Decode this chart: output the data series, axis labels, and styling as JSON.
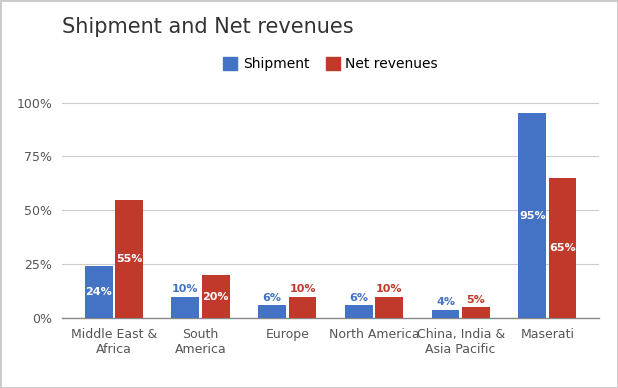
{
  "title": "Shipment and Net revenues",
  "categories": [
    "Middle East &\nAfrica",
    "South\nAmerica",
    "Europe",
    "North America",
    "China, India &\nAsia Pacific",
    "Maserati"
  ],
  "shipment": [
    24,
    10,
    6,
    6,
    4,
    95
  ],
  "net_revenues": [
    55,
    20,
    10,
    10,
    5,
    65
  ],
  "shipment_color": "#4472C4",
  "net_revenues_color": "#C0392B",
  "background_color": "#FFFFFF",
  "grid_color": "#CCCCCC",
  "title_fontsize": 15,
  "tick_fontsize": 9,
  "legend_fontsize": 10,
  "bar_label_fontsize": 8,
  "ylim": [
    0,
    108
  ],
  "yticks": [
    0,
    25,
    50,
    75,
    100
  ],
  "ytick_labels": [
    "0%",
    "25%",
    "50%",
    "75%",
    "100%"
  ],
  "legend_labels": [
    "Shipment",
    "Net revenues"
  ],
  "bar_width": 0.32,
  "bar_gap": 0.03,
  "inside_label_threshold": 12
}
